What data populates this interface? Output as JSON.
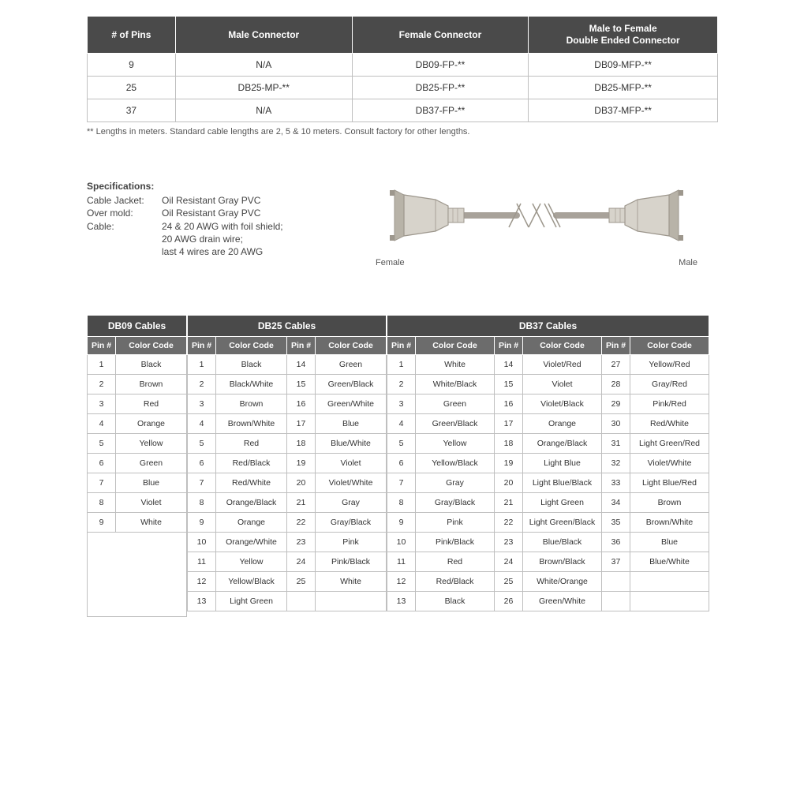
{
  "topTable": {
    "headers": [
      "# of Pins",
      "Male Connector",
      "Female Connector",
      "Male to Female\nDouble Ended Connector"
    ],
    "rows": [
      [
        "9",
        "N/A",
        "DB09-FP-**",
        "DB09-MFP-**"
      ],
      [
        "25",
        "DB25-MP-**",
        "DB25-FP-**",
        "DB25-MFP-**"
      ],
      [
        "37",
        "N/A",
        "DB37-FP-**",
        "DB37-MFP-**"
      ]
    ],
    "footnote": "** Lengths in meters. Standard cable lengths are 2, 5 & 10 meters. Consult factory for other lengths."
  },
  "specs": {
    "title": "Specifications:",
    "lines": [
      {
        "label": "Cable Jacket:",
        "value": "Oil Resistant Gray PVC"
      },
      {
        "label": "Over mold:",
        "value": "Oil Resistant Gray PVC"
      },
      {
        "label": "Cable:",
        "value": "24 & 20 AWG with foil shield;"
      },
      {
        "label": "",
        "value": "20 AWG drain wire;"
      },
      {
        "label": "",
        "value": "last 4 wires are 20 AWG"
      }
    ]
  },
  "diagram": {
    "leftLabel": "Female",
    "rightLabel": "Male",
    "body": "#d7d3cb",
    "edge": "#9d978d",
    "pinBg": "#b8b3a8",
    "cable": "#a8a29a"
  },
  "cableTables": {
    "pinHeader": "Pin #",
    "codeHeader": "Color Code",
    "groups": {
      "db09": {
        "title": "DB09 Cables",
        "pairs": 1,
        "rows": [
          [
            "1",
            "Black"
          ],
          [
            "2",
            "Brown"
          ],
          [
            "3",
            "Red"
          ],
          [
            "4",
            "Orange"
          ],
          [
            "5",
            "Yellow"
          ],
          [
            "6",
            "Green"
          ],
          [
            "7",
            "Blue"
          ],
          [
            "8",
            "Violet"
          ],
          [
            "9",
            "White"
          ]
        ]
      },
      "db25": {
        "title": "DB25 Cables",
        "pairs": 2,
        "rows": [
          [
            "1",
            "Black",
            "14",
            "Green"
          ],
          [
            "2",
            "Black/White",
            "15",
            "Green/Black"
          ],
          [
            "3",
            "Brown",
            "16",
            "Green/White"
          ],
          [
            "4",
            "Brown/White",
            "17",
            "Blue"
          ],
          [
            "5",
            "Red",
            "18",
            "Blue/White"
          ],
          [
            "6",
            "Red/Black",
            "19",
            "Violet"
          ],
          [
            "7",
            "Red/White",
            "20",
            "Violet/White"
          ],
          [
            "8",
            "Orange/Black",
            "21",
            "Gray"
          ],
          [
            "9",
            "Orange",
            "22",
            "Gray/Black"
          ],
          [
            "10",
            "Orange/White",
            "23",
            "Pink"
          ],
          [
            "11",
            "Yellow",
            "24",
            "Pink/Black"
          ],
          [
            "12",
            "Yellow/Black",
            "25",
            "White"
          ],
          [
            "13",
            "Light Green",
            "",
            ""
          ]
        ]
      },
      "db37": {
        "title": "DB37 Cables",
        "pairs": 3,
        "rows": [
          [
            "1",
            "White",
            "14",
            "Violet/Red",
            "27",
            "Yellow/Red"
          ],
          [
            "2",
            "White/Black",
            "15",
            "Violet",
            "28",
            "Gray/Red"
          ],
          [
            "3",
            "Green",
            "16",
            "Violet/Black",
            "29",
            "Pink/Red"
          ],
          [
            "4",
            "Green/Black",
            "17",
            "Orange",
            "30",
            "Red/White"
          ],
          [
            "5",
            "Yellow",
            "18",
            "Orange/Black",
            "31",
            "Light Green/Red"
          ],
          [
            "6",
            "Yellow/Black",
            "19",
            "Light Blue",
            "32",
            "Violet/White"
          ],
          [
            "7",
            "Gray",
            "20",
            "Light Blue/Black",
            "33",
            "Light Blue/Red"
          ],
          [
            "8",
            "Gray/Black",
            "21",
            "Light Green",
            "34",
            "Brown"
          ],
          [
            "9",
            "Pink",
            "22",
            "Light Green/Black",
            "35",
            "Brown/White"
          ],
          [
            "10",
            "Pink/Black",
            "23",
            "Blue/Black",
            "36",
            "Blue"
          ],
          [
            "11",
            "Red",
            "24",
            "Brown/Black",
            "37",
            "Blue/White"
          ],
          [
            "12",
            "Red/Black",
            "25",
            "White/Orange",
            "",
            ""
          ],
          [
            "13",
            "Black",
            "26",
            "Green/White",
            "",
            ""
          ]
        ]
      }
    }
  },
  "style": {
    "headerBg": "#4a4a4a",
    "subHeaderBg": "#6c6c6c",
    "border": "#bfbfbf",
    "text": "#333333"
  }
}
